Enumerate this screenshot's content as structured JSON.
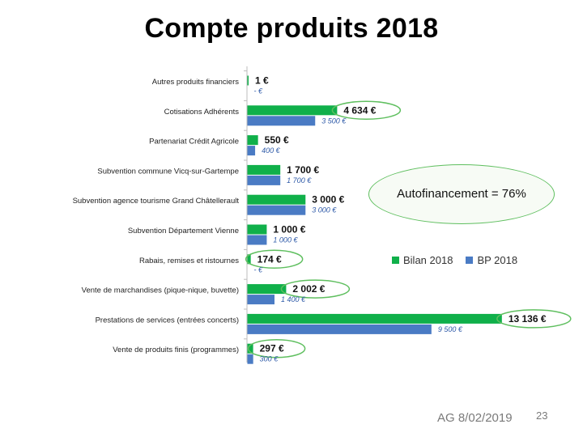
{
  "title": "Compte produits 2018",
  "callout": "Autofinancement = 76%",
  "footer": "AG 8/02/2019",
  "page_number": "23",
  "colors": {
    "bilan": "#10b04a",
    "bp": "#4a7bc4",
    "highlight_ring": "#5fbf5f"
  },
  "chart_data": {
    "type": "bar",
    "orientation": "horizontal",
    "categories": [
      "Autres produits financiers",
      "Cotisations Adhérents",
      "Partenariat Crédit Agricole",
      "Subvention commune Vicq-sur-Gartempe",
      "Subvention agence tourisme Grand Châtellerault",
      "Subvention Département Vienne",
      "Rabais, remises et ristournes",
      "Vente de marchandises (pique-nique, buvette)",
      "Prestations de services (entrées concerts)",
      "Vente de produits finis (programmes)"
    ],
    "series": [
      {
        "name": "Bilan 2018",
        "values": [
          1,
          4634,
          550,
          1700,
          3000,
          1000,
          174,
          2002,
          13136,
          297
        ],
        "labels": [
          "1  €",
          "4 634  €",
          "550 €",
          "1 700  €",
          "3 000  €",
          "1 000  €",
          "174  €",
          "2 002  €",
          "13 136  €",
          "297  €"
        ]
      },
      {
        "name": "BP 2018",
        "values": [
          0,
          3500,
          400,
          1700,
          3000,
          1000,
          0,
          1400,
          9500,
          300
        ],
        "labels": [
          "-     €",
          "3 500  €",
          "400  €",
          "1 700  €",
          "3 000  €",
          "1 000  €",
          "-     €",
          "1 400  €",
          "9 500  €",
          "300  €"
        ]
      }
    ],
    "highlighted_bilan_labels": [
      1,
      6,
      7,
      8,
      9
    ],
    "xlim": [
      0,
      14000
    ],
    "grid": false,
    "legend": "right"
  }
}
